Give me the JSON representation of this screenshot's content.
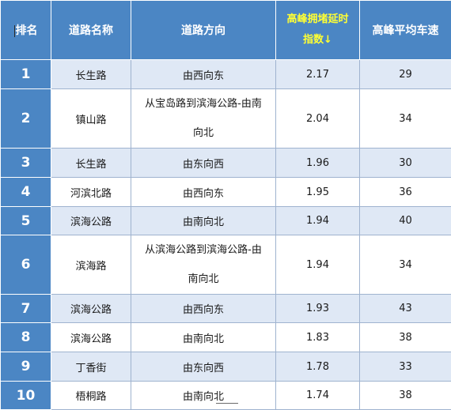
{
  "table": {
    "headers": {
      "rank": "排名",
      "road_name": "道路名称",
      "direction": "道路方向",
      "congestion_line1": "高峰拥堵延时",
      "congestion_line2": "指数↓",
      "avg_speed": "高峰平均车速"
    },
    "rows": [
      {
        "rank": "1",
        "road": "长生路",
        "direction": "由西向东",
        "index": "2.17",
        "speed": "29"
      },
      {
        "rank": "2",
        "road": "镇山路",
        "direction_line1": "从宝岛路到滨海公路-由南",
        "direction_line2": "向北",
        "index": "2.04",
        "speed": "34"
      },
      {
        "rank": "3",
        "road": "长生路",
        "direction": "由东向西",
        "index": "1.96",
        "speed": "30"
      },
      {
        "rank": "4",
        "road": "河滨北路",
        "direction": "由西向东",
        "index": "1.95",
        "speed": "36"
      },
      {
        "rank": "5",
        "road": "滨海公路",
        "direction": "由南向北",
        "index": "1.94",
        "speed": "40"
      },
      {
        "rank": "6",
        "road": "滨海路",
        "direction_line1": "从滨海公路到滨海公路-由",
        "direction_line2": "南向北",
        "index": "1.94",
        "speed": "34"
      },
      {
        "rank": "7",
        "road": "滨海公路",
        "direction": "由西向东",
        "index": "1.93",
        "speed": "43"
      },
      {
        "rank": "8",
        "road": "滨海公路",
        "direction": "由南向北",
        "index": "1.83",
        "speed": "38"
      },
      {
        "rank": "9",
        "road": "丁香街",
        "direction": "由东向西",
        "index": "1.78",
        "speed": "33"
      },
      {
        "rank": "10",
        "road": "梧桐路",
        "direction": "由南向北",
        "index": "1.74",
        "speed": "38"
      }
    ]
  },
  "colors": {
    "header_bg": "#4b86c4",
    "header_text": "#ffffff",
    "highlight_header_text": "#ffff33",
    "alt_row_bg": "#dfe8f5",
    "row_bg": "#ffffff"
  }
}
